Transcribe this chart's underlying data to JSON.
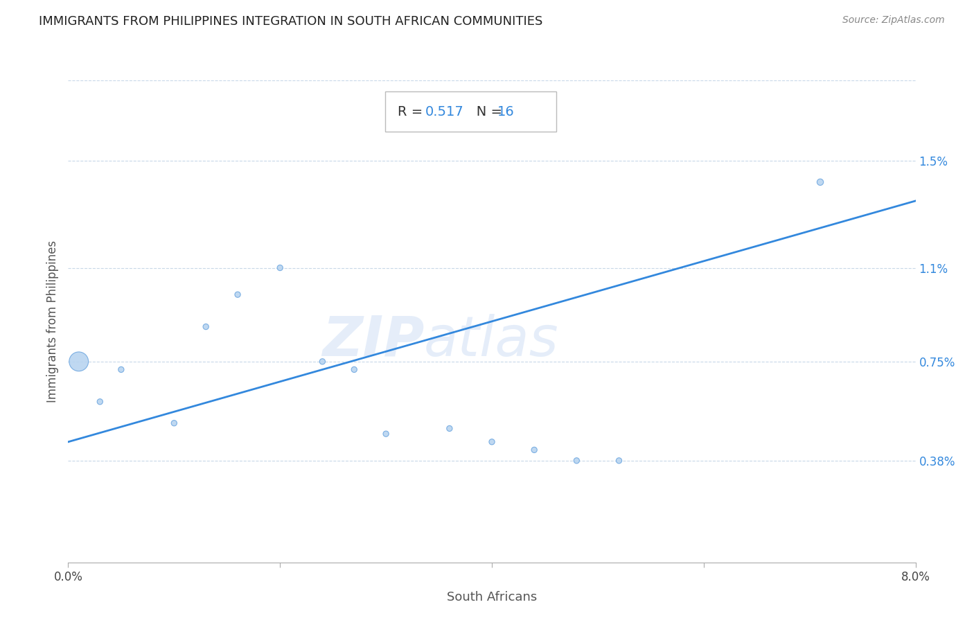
{
  "title": "IMMIGRANTS FROM PHILIPPINES INTEGRATION IN SOUTH AFRICAN COMMUNITIES",
  "source": "Source: ZipAtlas.com",
  "xlabel": "South Africans",
  "ylabel": "Immigrants from Philippines",
  "xlim": [
    0.0,
    0.08
  ],
  "ylim": [
    0.0,
    0.018
  ],
  "y_tick_labels": [
    "0.38%",
    "0.75%",
    "1.1%",
    "1.5%"
  ],
  "y_tick_vals": [
    0.0038,
    0.0075,
    0.011,
    0.015
  ],
  "R": "0.517",
  "N": "16",
  "scatter_x": [
    0.001,
    0.003,
    0.005,
    0.01,
    0.013,
    0.016,
    0.02,
    0.024,
    0.027,
    0.03,
    0.036,
    0.04,
    0.044,
    0.048,
    0.052,
    0.071
  ],
  "scatter_y": [
    0.0075,
    0.006,
    0.0072,
    0.0052,
    0.0088,
    0.01,
    0.011,
    0.0075,
    0.0072,
    0.0048,
    0.005,
    0.0045,
    0.0042,
    0.0038,
    0.0038,
    0.0142
  ],
  "scatter_sizes": [
    400,
    35,
    35,
    35,
    35,
    35,
    35,
    35,
    35,
    35,
    35,
    35,
    35,
    35,
    35,
    45
  ],
  "dot_color": "#b8d4f0",
  "dot_edgecolor": "#70a8e0",
  "line_color": "#3388dd",
  "line_x0": 0.0,
  "line_y0": 0.0045,
  "line_x1": 0.08,
  "line_y1": 0.0135,
  "watermark_zip": "ZIP",
  "watermark_atlas": "atlas",
  "grid_color": "#c8d8e8",
  "background_color": "#ffffff",
  "title_color": "#222222",
  "source_color": "#888888",
  "annotation_color": "#3388dd",
  "ylabel_color": "#555555",
  "xlabel_color": "#555555"
}
